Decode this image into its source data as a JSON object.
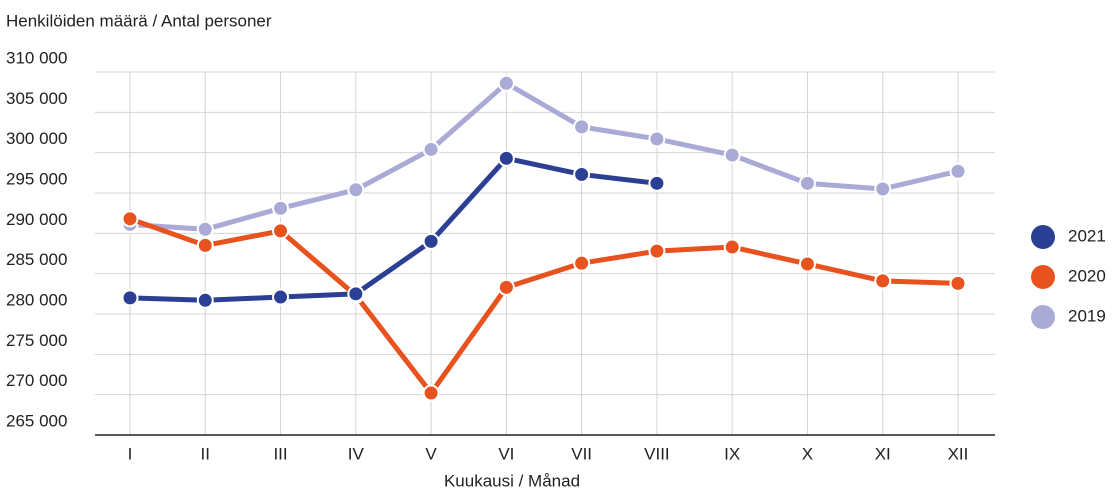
{
  "chart_data": {
    "type": "line",
    "title": "Henkilöiden määrä / Antal personer",
    "x_label": "Kuukausi / Månad",
    "categories": [
      "I",
      "II",
      "III",
      "IV",
      "V",
      "VI",
      "VII",
      "VIII",
      "IX",
      "X",
      "XI",
      "XII"
    ],
    "series": [
      {
        "name": "2021",
        "color": "#2b3f94",
        "values": [
          282000,
          281700,
          282100,
          282500,
          289000,
          299300,
          297300,
          296200,
          null,
          null,
          null,
          null
        ]
      },
      {
        "name": "2020",
        "color": "#e8521e",
        "values": [
          291800,
          288500,
          290300,
          282300,
          270200,
          283300,
          286300,
          287800,
          288300,
          286200,
          284100,
          283800
        ]
      },
      {
        "name": "2019",
        "color": "#aaaad6",
        "values": [
          291100,
          290500,
          293100,
          295400,
          300400,
          308600,
          303200,
          301700,
          299700,
          296200,
          295500,
          297700
        ]
      }
    ],
    "ylim": [
      265000,
      310000
    ],
    "yticks": [
      {
        "value": 265000,
        "label": "265 000"
      },
      {
        "value": 270000,
        "label": "270 000"
      },
      {
        "value": 275000,
        "label": "275 000"
      },
      {
        "value": 280000,
        "label": "280 000"
      },
      {
        "value": 285000,
        "label": "285 000"
      },
      {
        "value": 290000,
        "label": "290 000"
      },
      {
        "value": 295000,
        "label": "295 000"
      },
      {
        "value": 300000,
        "label": "300 000"
      },
      {
        "value": 305000,
        "label": "305 000"
      },
      {
        "value": 310000,
        "label": "310 000"
      }
    ],
    "grid": true,
    "legend": "right"
  }
}
